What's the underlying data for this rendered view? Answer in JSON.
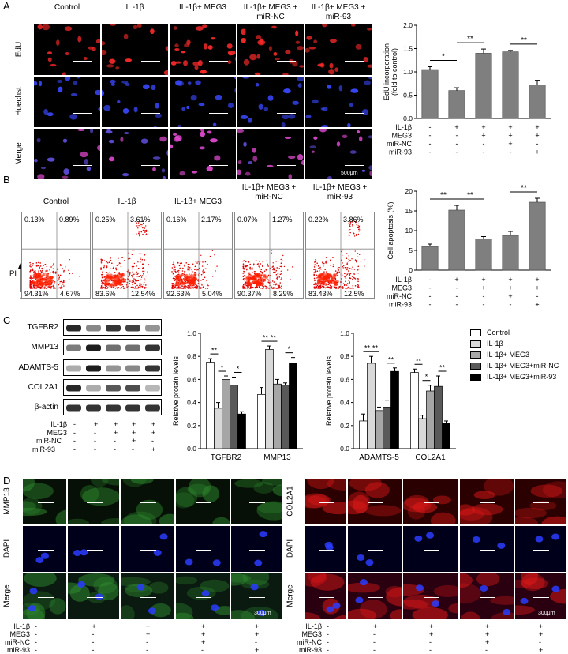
{
  "panel_labels": {
    "a": "A",
    "b": "B",
    "c": "C",
    "d": "D"
  },
  "panel_a": {
    "col_titles": [
      "Control",
      "IL-1β",
      "IL-1β+ MEG3",
      "IL-1β+ MEG3 +\nmiR-NC",
      "IL-1β+ MEG3 +\nmiR-93"
    ],
    "row_labels": [
      "EdU",
      "Hoechst",
      "Merge"
    ],
    "scale_bar": "500μm"
  },
  "panel_b": {
    "col_titles": [
      "Control",
      "IL-1β",
      "IL-1β+ MEG3",
      "IL-1β+ MEG3 +\nmiR-NC",
      "IL-1β+ MEG3 +\nmiR-93"
    ],
    "quadrants": [
      [
        "0.13%",
        "0.89%",
        "94.31%",
        "4.67%"
      ],
      [
        "0.25%",
        "3.61%",
        "83.6%",
        "12.54%"
      ],
      [
        "0.16%",
        "2.17%",
        "92.63%",
        "5.04%"
      ],
      [
        "0.07%",
        "1.27%",
        "90.37%",
        "8.29%"
      ],
      [
        "0.22%",
        "3.86%",
        "83.43%",
        "12.5%"
      ]
    ],
    "x_axis": "AnnexinV",
    "y_axis": "PI"
  },
  "panel_c": {
    "blot_labels": [
      "TGFBR2",
      "MMP13",
      "ADAMTS-5",
      "COL2A1",
      "β-actin"
    ],
    "legend": [
      "Control",
      "IL-1β",
      "IL-1β+ MEG3",
      "IL-1β+ MEG3+miR-NC",
      "IL-1β+ MEG3+miR-93"
    ]
  },
  "panel_d": {
    "left_rows": [
      "MMP13",
      "DAPI",
      "Merge"
    ],
    "right_rows": [
      "COL2A1",
      "DAPI",
      "Merge"
    ],
    "scale_bar": "300μm"
  },
  "treatment_table": {
    "rows": [
      "IL-1β",
      "MEG3",
      "miR-NC",
      "miR-93"
    ],
    "values": [
      [
        "-",
        "+",
        "+",
        "+",
        "+"
      ],
      [
        "-",
        "-",
        "+",
        "+",
        "+"
      ],
      [
        "-",
        "-",
        "-",
        "+",
        "-"
      ],
      [
        "-",
        "-",
        "-",
        "-",
        "+"
      ]
    ]
  },
  "chart_data": [
    {
      "type": "bar",
      "ylabel": "EdU incorporation\n(fold to control)",
      "ylim": [
        0,
        2.0
      ],
      "yticks": [
        "0.0",
        "0.5",
        "1.0",
        "1.5",
        "2.0"
      ],
      "values": [
        1.05,
        0.6,
        1.4,
        1.43,
        0.72
      ],
      "errors": [
        0.06,
        0.06,
        0.09,
        0.03,
        0.1
      ],
      "significance": [
        [
          "*",
          0,
          1
        ],
        [
          "**",
          1,
          2
        ],
        [
          "**",
          3,
          4
        ]
      ],
      "color": "#7f7f7f"
    },
    {
      "type": "bar",
      "ylabel": "Cell apoptosis (%)",
      "ylim": [
        0,
        20
      ],
      "yticks": [
        "0",
        "5",
        "10",
        "15",
        "20"
      ],
      "values": [
        6.0,
        15.2,
        7.9,
        8.8,
        17.2
      ],
      "errors": [
        0.6,
        1.2,
        0.6,
        1.0,
        1.0
      ],
      "significance": [
        [
          "**",
          0,
          1
        ],
        [
          "**",
          1,
          2
        ],
        [
          "**",
          3,
          4
        ]
      ],
      "color": "#7f7f7f"
    },
    {
      "type": "bar",
      "ylabel": "Relative protein levels",
      "ylim": [
        0,
        1.0
      ],
      "yticks": [
        "0.0",
        "0.2",
        "0.4",
        "0.6",
        "0.8",
        "1.0"
      ],
      "categories": [
        "TGFBR2",
        "MMP13"
      ],
      "series": [
        {
          "name": "Control",
          "values": [
            0.75,
            0.47
          ]
        },
        {
          "name": "IL-1β",
          "values": [
            0.35,
            0.86
          ]
        },
        {
          "name": "IL-1β+ MEG3",
          "values": [
            0.6,
            0.56
          ]
        },
        {
          "name": "IL-1β+ MEG3+miR-NC",
          "values": [
            0.55,
            0.55
          ]
        },
        {
          "name": "IL-1β+ MEG3+miR-93",
          "values": [
            0.3,
            0.74
          ]
        }
      ],
      "errors": [
        [
          0.03,
          0.06
        ],
        [
          0.05,
          0.03
        ],
        [
          0.03,
          0.04
        ],
        [
          0.07,
          0.02
        ],
        [
          0.02,
          0.05
        ]
      ]
    },
    {
      "type": "bar",
      "ylabel": "Relative protein levels",
      "ylim": [
        0,
        1.0
      ],
      "yticks": [
        "0.0",
        "0.2",
        "0.4",
        "0.6",
        "0.8",
        "1.0"
      ],
      "categories": [
        "ADAMTS-5",
        "COL2A1"
      ],
      "series": [
        {
          "name": "Control",
          "values": [
            0.24,
            0.66
          ]
        },
        {
          "name": "IL-1β",
          "values": [
            0.74,
            0.26
          ]
        },
        {
          "name": "IL-1β+ MEG3",
          "values": [
            0.33,
            0.5
          ]
        },
        {
          "name": "IL-1β+ MEG3+miR-NC",
          "values": [
            0.36,
            0.54
          ]
        },
        {
          "name": "IL-1β+ MEG3+miR-93",
          "values": [
            0.67,
            0.22
          ]
        }
      ],
      "errors": [
        [
          0.06,
          0.03
        ],
        [
          0.06,
          0.03
        ],
        [
          0.03,
          0.05
        ],
        [
          0.06,
          0.09
        ],
        [
          0.03,
          0.02
        ]
      ]
    }
  ]
}
